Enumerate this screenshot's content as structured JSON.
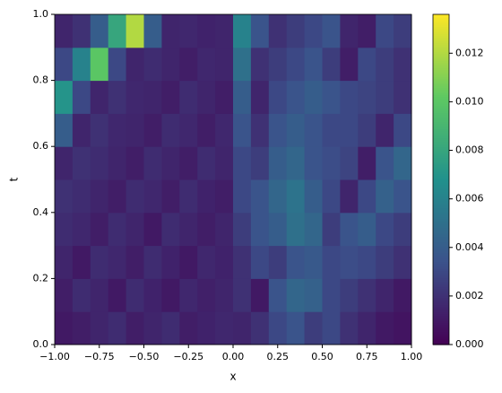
{
  "chart_data": {
    "type": "heatmap",
    "xlabel": "x",
    "ylabel": "t",
    "colormap": "viridis",
    "x": [
      -0.95,
      -0.85,
      -0.75,
      -0.65,
      -0.55,
      -0.45,
      -0.35,
      -0.25,
      -0.15,
      -0.05,
      0.05,
      0.15,
      0.25,
      0.35,
      0.45,
      0.55,
      0.65,
      0.75,
      0.85,
      0.95
    ],
    "y": [
      0.05,
      0.15,
      0.25,
      0.35,
      0.45,
      0.55,
      0.65,
      0.75,
      0.85,
      0.95
    ],
    "values": [
      [
        0.001,
        0.0012,
        0.0015,
        0.0018,
        0.0012,
        0.0015,
        0.0018,
        0.0012,
        0.0014,
        0.0016,
        0.0015,
        0.002,
        0.003,
        0.0035,
        0.0025,
        0.003,
        0.002,
        0.0015,
        0.001,
        0.0008
      ],
      [
        0.0012,
        0.0018,
        0.0015,
        0.001,
        0.0018,
        0.0014,
        0.001,
        0.0016,
        0.0013,
        0.0015,
        0.002,
        0.001,
        0.0035,
        0.0045,
        0.0042,
        0.003,
        0.0025,
        0.002,
        0.0015,
        0.001
      ],
      [
        0.0015,
        0.001,
        0.0018,
        0.0016,
        0.0012,
        0.0018,
        0.0014,
        0.001,
        0.0016,
        0.0014,
        0.002,
        0.003,
        0.0025,
        0.0035,
        0.0038,
        0.003,
        0.0032,
        0.003,
        0.0025,
        0.002
      ],
      [
        0.0018,
        0.0016,
        0.0012,
        0.0018,
        0.0015,
        0.001,
        0.0018,
        0.0015,
        0.0012,
        0.0015,
        0.0025,
        0.0035,
        0.004,
        0.005,
        0.0045,
        0.0025,
        0.0035,
        0.004,
        0.003,
        0.0025
      ],
      [
        0.002,
        0.0018,
        0.0015,
        0.0012,
        0.0018,
        0.0016,
        0.0012,
        0.0018,
        0.0014,
        0.0012,
        0.003,
        0.0035,
        0.0045,
        0.0052,
        0.004,
        0.003,
        0.0015,
        0.003,
        0.0042,
        0.0035
      ],
      [
        0.0015,
        0.002,
        0.0018,
        0.0015,
        0.0012,
        0.0018,
        0.0015,
        0.0012,
        0.0018,
        0.0015,
        0.003,
        0.0025,
        0.004,
        0.0045,
        0.0035,
        0.0032,
        0.0028,
        0.0012,
        0.0035,
        0.0045
      ],
      [
        0.004,
        0.0015,
        0.002,
        0.0016,
        0.0015,
        0.0012,
        0.0018,
        0.0016,
        0.0012,
        0.0016,
        0.0035,
        0.002,
        0.0035,
        0.004,
        0.0035,
        0.003,
        0.003,
        0.0025,
        0.0015,
        0.003
      ],
      [
        0.007,
        0.003,
        0.0015,
        0.002,
        0.0016,
        0.0015,
        0.0012,
        0.0018,
        0.0015,
        0.0012,
        0.004,
        0.0015,
        0.003,
        0.0035,
        0.004,
        0.0035,
        0.003,
        0.0028,
        0.0025,
        0.002
      ],
      [
        0.003,
        0.006,
        0.01,
        0.003,
        0.0015,
        0.0018,
        0.0015,
        0.0012,
        0.0016,
        0.0015,
        0.005,
        0.002,
        0.0025,
        0.003,
        0.0035,
        0.0025,
        0.0012,
        0.003,
        0.0025,
        0.002
      ],
      [
        0.0015,
        0.002,
        0.004,
        0.008,
        0.012,
        0.004,
        0.0015,
        0.0016,
        0.0014,
        0.0015,
        0.006,
        0.0035,
        0.002,
        0.0025,
        0.003,
        0.0035,
        0.0015,
        0.0012,
        0.003,
        0.0025
      ]
    ],
    "xlim": [
      -1,
      1
    ],
    "ylim": [
      0,
      1
    ],
    "clim": [
      0,
      0.0136
    ],
    "xticks": [
      {
        "value": -1,
        "label": "−1.00"
      },
      {
        "value": -0.75,
        "label": "−0.75"
      },
      {
        "value": -0.5,
        "label": "−0.50"
      },
      {
        "value": -0.25,
        "label": "−0.25"
      },
      {
        "value": 0,
        "label": "0.00"
      },
      {
        "value": 0.25,
        "label": "0.25"
      },
      {
        "value": 0.5,
        "label": "0.50"
      },
      {
        "value": 0.75,
        "label": "0.75"
      },
      {
        "value": 1,
        "label": "1.00"
      }
    ],
    "yticks": [
      {
        "value": 0,
        "label": "0.0"
      },
      0.2,
      0.4,
      0.6,
      0.8,
      {
        "value": 1,
        "label": "1.0"
      }
    ],
    "cticks": [
      {
        "value": 0,
        "label": "0.000"
      },
      {
        "value": 0.002,
        "label": "0.002"
      },
      {
        "value": 0.004,
        "label": "0.004"
      },
      {
        "value": 0.006,
        "label": "0.006"
      },
      {
        "value": 0.008,
        "label": "0.008"
      },
      {
        "value": 0.01,
        "label": "0.010"
      },
      {
        "value": 0.012,
        "label": "0.012"
      }
    ]
  }
}
